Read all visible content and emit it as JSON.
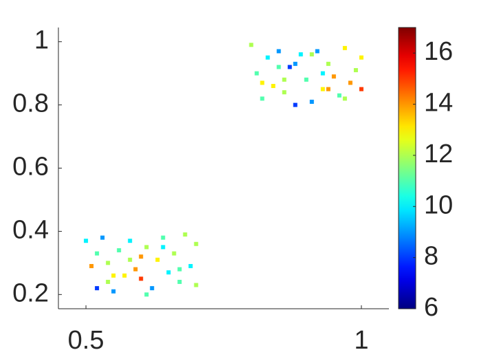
{
  "chart_data": {
    "type": "scatter",
    "colormap": "jet",
    "x": [
      0.5,
      0.51,
      0.52,
      0.53,
      0.54,
      0.55,
      0.56,
      0.57,
      0.58,
      0.59,
      0.6,
      0.61,
      0.62,
      0.63,
      0.64,
      0.65,
      0.66,
      0.67,
      0.68,
      0.69,
      0.7,
      0.52,
      0.55,
      0.58,
      0.61,
      0.64,
      0.67,
      0.7,
      0.54,
      0.6,
      0.8,
      0.81,
      0.82,
      0.83,
      0.84,
      0.85,
      0.86,
      0.87,
      0.88,
      0.89,
      0.9,
      0.91,
      0.92,
      0.93,
      0.94,
      0.95,
      0.96,
      0.97,
      0.98,
      0.99,
      1.0,
      0.82,
      0.85,
      0.88,
      0.91,
      0.94,
      0.97,
      1.0,
      0.86,
      0.93
    ],
    "values": [
      0.37,
      0.29,
      0.22,
      0.38,
      0.3,
      0.21,
      0.34,
      0.26,
      0.37,
      0.28,
      0.25,
      0.35,
      0.22,
      0.31,
      0.38,
      0.27,
      0.33,
      0.24,
      0.39,
      0.29,
      0.36,
      0.33,
      0.26,
      0.31,
      0.2,
      0.35,
      0.28,
      0.23,
      0.24,
      0.32,
      0.99,
      0.9,
      0.82,
      0.95,
      0.86,
      0.97,
      0.84,
      0.92,
      0.8,
      0.96,
      0.88,
      0.81,
      0.97,
      0.85,
      0.93,
      0.89,
      0.83,
      0.98,
      0.87,
      0.91,
      0.85,
      0.87,
      0.92,
      0.93,
      0.96,
      0.85,
      0.82,
      0.95,
      0.88,
      0.9
    ],
    "color_values": [
      10,
      14,
      8,
      9,
      12,
      9,
      11,
      13,
      10,
      14,
      15,
      12,
      9,
      13,
      11,
      10,
      12,
      11,
      12,
      10,
      12,
      11,
      13,
      12,
      11,
      10,
      11,
      12,
      12,
      14,
      12,
      11,
      11,
      10,
      13,
      9,
      12,
      8,
      8,
      10,
      11,
      9,
      9,
      13,
      12,
      14,
      11,
      13,
      14,
      12,
      15,
      13,
      11,
      9,
      12,
      14,
      12,
      13,
      12,
      10
    ],
    "xlim": [
      0.45,
      1.05
    ],
    "xticks": [
      0.5,
      1
    ],
    "ylim": [
      0.155,
      1.045
    ],
    "yticks": [
      0.2,
      0.4,
      0.6,
      0.8,
      1
    ],
    "clim": [
      6,
      17
    ],
    "cticks": [
      6,
      8,
      10,
      12,
      14,
      16
    ]
  }
}
